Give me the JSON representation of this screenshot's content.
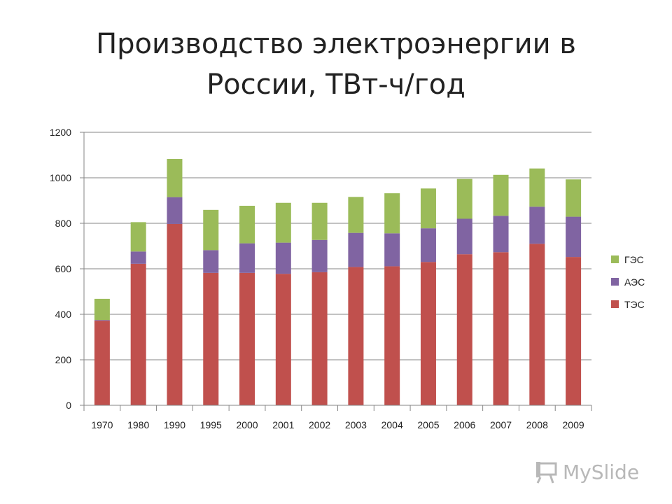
{
  "title": "Производство электроэнергии в России, ТВт-ч/год",
  "watermark": "MySlide",
  "chart_data": {
    "type": "bar",
    "stacked": true,
    "title": "Производство электроэнергии в России, ТВт-ч/год",
    "xlabel": "",
    "ylabel": "",
    "ylim": [
      0,
      1200
    ],
    "yticks": [
      0,
      200,
      400,
      600,
      800,
      1000,
      1200
    ],
    "grid": true,
    "legend_position": "right",
    "categories": [
      "1970",
      "1980",
      "1990",
      "1995",
      "2000",
      "2001",
      "2002",
      "2003",
      "2004",
      "2005",
      "2006",
      "2007",
      "2008",
      "2009"
    ],
    "series": [
      {
        "name": "ТЭС",
        "color": "#C0504D",
        "values": [
          372,
          622,
          797,
          582,
          582,
          578,
          585,
          608,
          611,
          630,
          664,
          673,
          710,
          652
        ]
      },
      {
        "name": "АЭС",
        "color": "#8064A2",
        "values": [
          3,
          54,
          118,
          100,
          130,
          137,
          142,
          150,
          145,
          148,
          156,
          160,
          163,
          177
        ]
      },
      {
        "name": "ГЭС",
        "color": "#9BBB59",
        "values": [
          93,
          129,
          168,
          177,
          165,
          175,
          163,
          158,
          176,
          175,
          175,
          180,
          168,
          164
        ]
      }
    ]
  }
}
